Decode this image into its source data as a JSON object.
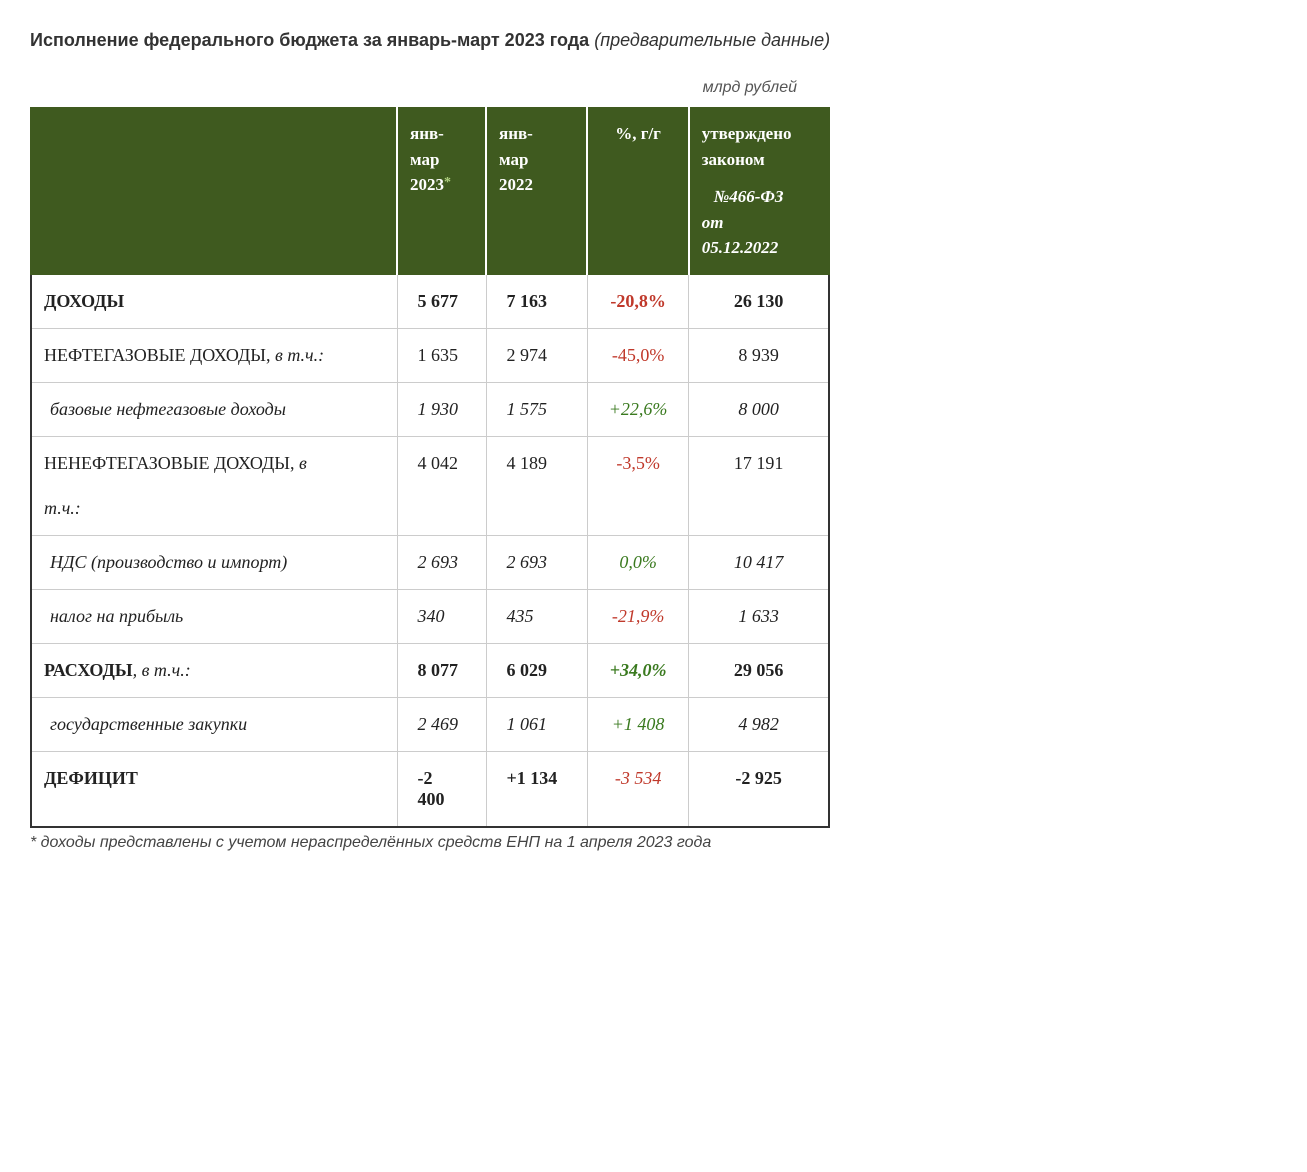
{
  "title": {
    "main": "Исполнение федерального бюджета за январь-март 2023 года",
    "sub": "(предварительные данные)"
  },
  "units_label": "млрд рублей",
  "colors": {
    "header_bg": "#3f5a1f",
    "header_text": "#ffffff",
    "negative": "#c0392b",
    "positive": "#3a7a1f",
    "body_text": "#222222",
    "background": "#ffffff",
    "grid": "#cccccc"
  },
  "typography": {
    "title_font": "Arial",
    "title_size_pt": 14,
    "body_font": "Georgia",
    "body_size_pt": 13
  },
  "table": {
    "type": "table",
    "columns": [
      {
        "label": ""
      },
      {
        "label_line1": "янв-",
        "label_line2": "мар",
        "label_line3": "2023",
        "asterisk": "*"
      },
      {
        "label_line1": "янв-",
        "label_line2": "мар",
        "label_line3": "2022"
      },
      {
        "label": "%, г/г"
      },
      {
        "label_line1": "утверждено",
        "label_line2": "законом",
        "law_no": "№466-ФЗ",
        "law_from": "от",
        "law_date": "05.12.2022"
      }
    ],
    "rows": [
      {
        "style": "bold",
        "label": "ДОХОДЫ",
        "v2023": "5 677",
        "v2022": "7 163",
        "pct": "-20,8%",
        "pct_class": "neg",
        "law": "26 130"
      },
      {
        "style": "plain",
        "label_main": "НЕФТЕГАЗОВЫЕ ДОХОДЫ,",
        "label_italic": "в т.ч.:",
        "v2023": "1 635",
        "v2022": "2 974",
        "pct": "-45,0%",
        "pct_class": "neg",
        "law": "8 939"
      },
      {
        "style": "italic-indent",
        "label": "базовые нефтегазовые доходы",
        "v2023": "1 930",
        "v2022": "1 575",
        "pct": "+22,6%",
        "pct_class": "pos-italic",
        "law": "8 000",
        "num_italic": true
      },
      {
        "style": "plain-2line",
        "label_main": "НЕНЕФТЕГАЗОВЫЕ ДОХОДЫ,",
        "label_italic1": "в",
        "label_italic2": "т.ч.:",
        "v2023": "4 042",
        "v2022": "4 189",
        "pct": "-3,5%",
        "pct_class": "neg",
        "law": "17 191"
      },
      {
        "style": "italic-indent",
        "label": "НДС (производство и импорт)",
        "v2023": "2 693",
        "v2022": "2 693",
        "pct": "0,0%",
        "pct_class": "pos-italic",
        "law": "10 417",
        "num_italic": true
      },
      {
        "style": "italic-indent",
        "label": "налог на прибыль",
        "v2023": "340",
        "v2022": "435",
        "pct": "-21,9%",
        "pct_class": "neg-italic",
        "law": "1 633",
        "num_italic": true
      },
      {
        "style": "bold-mixed",
        "label_bold": "РАСХОДЫ",
        "label_italic": ", в т.ч.:",
        "v2023": "8 077",
        "v2022": "6 029",
        "pct": "+34,0%",
        "pct_class": "pos-italic-bold",
        "law": "29 056"
      },
      {
        "style": "italic-indent",
        "label": "государственные закупки",
        "v2023": "2 469",
        "v2022": "1 061",
        "pct": "+1 408",
        "pct_class": "pos-italic",
        "law": "4 982",
        "num_italic": true
      },
      {
        "style": "bold",
        "label": "ДЕФИЦИТ",
        "v2023_line1": "-2",
        "v2023_line2": "400",
        "v2022": "+1 134",
        "pct": "-3 534",
        "pct_class": "neg-italic",
        "law": "-2 925"
      }
    ]
  },
  "footnote": "* доходы представлены с учетом нераспределённых средств ЕНП на 1 апреля 2023 года"
}
